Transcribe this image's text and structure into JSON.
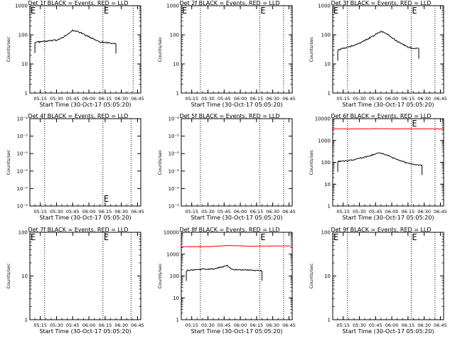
{
  "chart_data": [
    {
      "type": "line",
      "title": "Det 1f BLACK = Events, RED = LLD",
      "xlabel": "Start Time (30-Oct-17 05:05:20)",
      "ylabel": "Counts/sec",
      "x_tick_labels": [
        "05:15",
        "05:30",
        "05:45",
        "06:00",
        "06:15",
        "06:30",
        "06:45"
      ],
      "xlim": [
        "05:05:20",
        "06:48:00"
      ],
      "y_scale": "log",
      "ylim": [
        1,
        1000
      ],
      "y_tick_labels": [
        "1",
        "10",
        "100",
        "1000"
      ],
      "event_marker_times": [
        "05:05:20",
        "06:13"
      ],
      "event_marker_label": "E",
      "dotted_lines": [
        "05:19",
        "06:13",
        "06:41"
      ],
      "series": [
        {
          "color": "#000000",
          "points": [
            [
              "05:10",
              55
            ],
            [
              "05:20",
              60
            ],
            [
              "05:30",
              65
            ],
            [
              "05:40",
              100
            ],
            [
              "05:45",
              140
            ],
            [
              "05:50",
              130
            ],
            [
              "06:00",
              85
            ],
            [
              "06:10",
              58
            ],
            [
              "06:20",
              52
            ],
            [
              "06:25",
              50
            ]
          ],
          "end_drops": true
        }
      ]
    },
    {
      "type": "line",
      "title": "Det 2f BLACK = Events, RED = LLD",
      "xlabel": "Start Time (30-Oct-17 05:05:20)",
      "ylabel": "Counts/sec",
      "x_tick_labels": [
        "05:15",
        "05:30",
        "05:45",
        "06:00",
        "06:15",
        "06:30",
        "06:45"
      ],
      "xlim": [
        "05:05:20",
        "06:48:00"
      ],
      "y_scale": "log",
      "ylim": [
        1,
        1000
      ],
      "y_tick_labels": [
        "1",
        "10",
        "100",
        "1000"
      ],
      "event_marker_times": [
        "05:05:20",
        "06:18"
      ],
      "event_marker_label": "E",
      "dotted_lines": [
        "05:23",
        "06:18",
        "06:40"
      ],
      "series": []
    },
    {
      "type": "line",
      "title": "Det 3f BLACK = Events, RED = LLD",
      "xlabel": "Start Time (30-Oct-17 05:05:20)",
      "ylabel": "Counts/sec",
      "x_tick_labels": [
        "05:15",
        "05:30",
        "05:45",
        "06:00",
        "06:15",
        "06:30",
        "06:45"
      ],
      "xlim": [
        "05:05:20",
        "06:48:00"
      ],
      "y_scale": "log",
      "ylim": [
        1,
        1000
      ],
      "y_tick_labels": [
        "1",
        "10",
        "100",
        "1000"
      ],
      "event_marker_times": [
        "05:05:20",
        "06:18"
      ],
      "event_marker_label": "E",
      "dotted_lines": [
        "05:19",
        "06:18",
        "06:40"
      ],
      "series": [
        {
          "color": "#000000",
          "points": [
            [
              "05:10",
              30
            ],
            [
              "05:20",
              38
            ],
            [
              "05:30",
              50
            ],
            [
              "05:40",
              80
            ],
            [
              "05:50",
              130
            ],
            [
              "05:55",
              110
            ],
            [
              "06:05",
              60
            ],
            [
              "06:15",
              38
            ],
            [
              "06:20",
              35
            ],
            [
              "06:25",
              33
            ]
          ],
          "end_drops": true
        }
      ]
    },
    {
      "type": "line",
      "title": "Det 4f BLACK = Events, RED = LLD",
      "xlabel": "Start Time (30-Oct-17 05:05:20)",
      "ylabel": "Counts/sec",
      "x_tick_labels": [
        "05:15",
        "05:30",
        "05:45",
        "06:00",
        "06:15",
        "06:30",
        "06:45"
      ],
      "xlim": [
        "05:05:20",
        "06:48:00"
      ],
      "y_scale": "log",
      "ylim": [
        1e-05,
        0.0001
      ],
      "y_tick_labels": [
        "10⁻⁵",
        "10⁻⁵",
        "10⁻⁵",
        "10⁻⁵",
        "10⁻⁵",
        "10⁻⁴"
      ],
      "event_marker_times": [
        "06:13"
      ],
      "event_marker_label": "E",
      "dotted_lines": [
        "05:19",
        "06:13",
        "06:39"
      ],
      "series": []
    },
    {
      "type": "line",
      "title": "Det 5f BLACK = Events, RED = LLD",
      "xlabel": "Start Time (30-Oct-17 05:05:20)",
      "ylabel": "Counts/sec",
      "x_tick_labels": [
        "05:15",
        "05:30",
        "05:45",
        "06:00",
        "06:15",
        "06:30",
        "06:45"
      ],
      "xlim": [
        "05:05:20",
        "06:48:00"
      ],
      "y_scale": "log",
      "ylim": [
        1e-05,
        0.0001
      ],
      "y_tick_labels": [
        "10⁻⁵",
        "10⁻⁵",
        "10⁻⁵",
        "10⁻⁵",
        "10⁻⁵",
        "10⁻⁴"
      ],
      "event_marker_times": [],
      "event_marker_label": "E",
      "dotted_lines": [
        "05:23",
        "06:18",
        "06:40"
      ],
      "series": []
    },
    {
      "type": "line",
      "title": "Det 6f BLACK = Events, RED = LLD",
      "xlabel": "Start Time (30-Oct-17 05:05:20)",
      "ylabel": "Counts/sec",
      "x_tick_labels": [
        "05:15",
        "05:30",
        "05:45",
        "06:00",
        "06:15",
        "06:30",
        "06:45"
      ],
      "xlim": [
        "05:05:20",
        "06:48:00"
      ],
      "y_scale": "log",
      "ylim": [
        1,
        10000
      ],
      "y_tick_labels": [
        "1",
        "10",
        "100",
        "1000",
        "10000"
      ],
      "event_marker_times": [
        "06:18"
      ],
      "event_marker_label": "E",
      "dotted_lines": [
        "05:19",
        "06:18",
        "06:40"
      ],
      "series": [
        {
          "color": "#ff0000",
          "points": [
            [
              "05:05:20",
              3400
            ],
            [
              "05:40",
              3400
            ],
            [
              "05:50",
              3500
            ],
            [
              "06:00",
              3400
            ],
            [
              "06:48",
              3400
            ]
          ],
          "end_drops": false
        },
        {
          "color": "#000000",
          "points": [
            [
              "05:10",
              110
            ],
            [
              "05:20",
              120
            ],
            [
              "05:30",
              150
            ],
            [
              "05:40",
              200
            ],
            [
              "05:48",
              280
            ],
            [
              "05:55",
              220
            ],
            [
              "06:05",
              130
            ],
            [
              "06:15",
              90
            ],
            [
              "06:22",
              80
            ],
            [
              "06:28",
              75
            ]
          ],
          "end_drops": true
        }
      ]
    },
    {
      "type": "line",
      "title": "Det 7f BLACK = Events, RED = LLD",
      "xlabel": "Start Time (30-Oct-17 05:05:20)",
      "ylabel": "Counts/sec",
      "x_tick_labels": [
        "05:15",
        "05:30",
        "05:45",
        "06:00",
        "06:15",
        "06:30",
        "06:45"
      ],
      "xlim": [
        "05:05:20",
        "06:48:00"
      ],
      "y_scale": "log",
      "ylim": [
        1,
        100
      ],
      "y_tick_labels": [
        "1",
        "10",
        "100"
      ],
      "event_marker_times": [
        "05:05:20",
        "06:13"
      ],
      "event_marker_label": "E",
      "dotted_lines": [
        "05:19",
        "06:13",
        "06:39"
      ],
      "series": []
    },
    {
      "type": "line",
      "title": "Det 8f BLACK = Events, RED = LLD",
      "xlabel": "Start Time (30-Oct-17 05:05:20)",
      "ylabel": "Counts/sec",
      "x_tick_labels": [
        "05:15",
        "05:30",
        "05:45",
        "06:00",
        "06:15",
        "06:30",
        "06:45"
      ],
      "xlim": [
        "05:05:20",
        "06:48:00"
      ],
      "y_scale": "log",
      "ylim": [
        1,
        10000
      ],
      "y_tick_labels": [
        "1",
        "10",
        "100",
        "1000",
        "10000"
      ],
      "event_marker_times": [
        "06:18"
      ],
      "event_marker_label": "E",
      "dotted_lines": [
        "05:23",
        "06:18",
        "06:40"
      ],
      "series": [
        {
          "color": "#ff0000",
          "points": [
            [
              "05:05:20",
              2200
            ],
            [
              "05:30",
              2200
            ],
            [
              "05:50",
              2500
            ],
            [
              "06:10",
              2300
            ],
            [
              "06:48",
              2400
            ]
          ],
          "end_drops": false
        },
        {
          "color": "#000000",
          "points": [
            [
              "05:10",
              180
            ],
            [
              "05:20",
              200
            ],
            [
              "05:35",
              210
            ],
            [
              "05:48",
              300
            ],
            [
              "05:52",
              200
            ],
            [
              "06:05",
              190
            ],
            [
              "06:15",
              180
            ],
            [
              "06:20",
              175
            ]
          ],
          "end_drops": true
        }
      ]
    },
    {
      "type": "line",
      "title": "Det 9f BLACK = Events, RED = LLD",
      "xlabel": "Start Time (30-Oct-17 05:05:20)",
      "ylabel": "Counts/sec",
      "x_tick_labels": [
        "05:15",
        "05:30",
        "05:45",
        "06:00",
        "06:15",
        "06:30",
        "06:45"
      ],
      "xlim": [
        "05:05:20",
        "06:48:00"
      ],
      "y_scale": "log",
      "ylim": [
        1,
        100
      ],
      "y_tick_labels": [
        "1",
        "10",
        "100"
      ],
      "event_marker_times": [
        "05:05:20",
        "06:18"
      ],
      "event_marker_label": "E",
      "dotted_lines": [
        "05:19",
        "06:18",
        "06:40"
      ],
      "series": []
    }
  ]
}
